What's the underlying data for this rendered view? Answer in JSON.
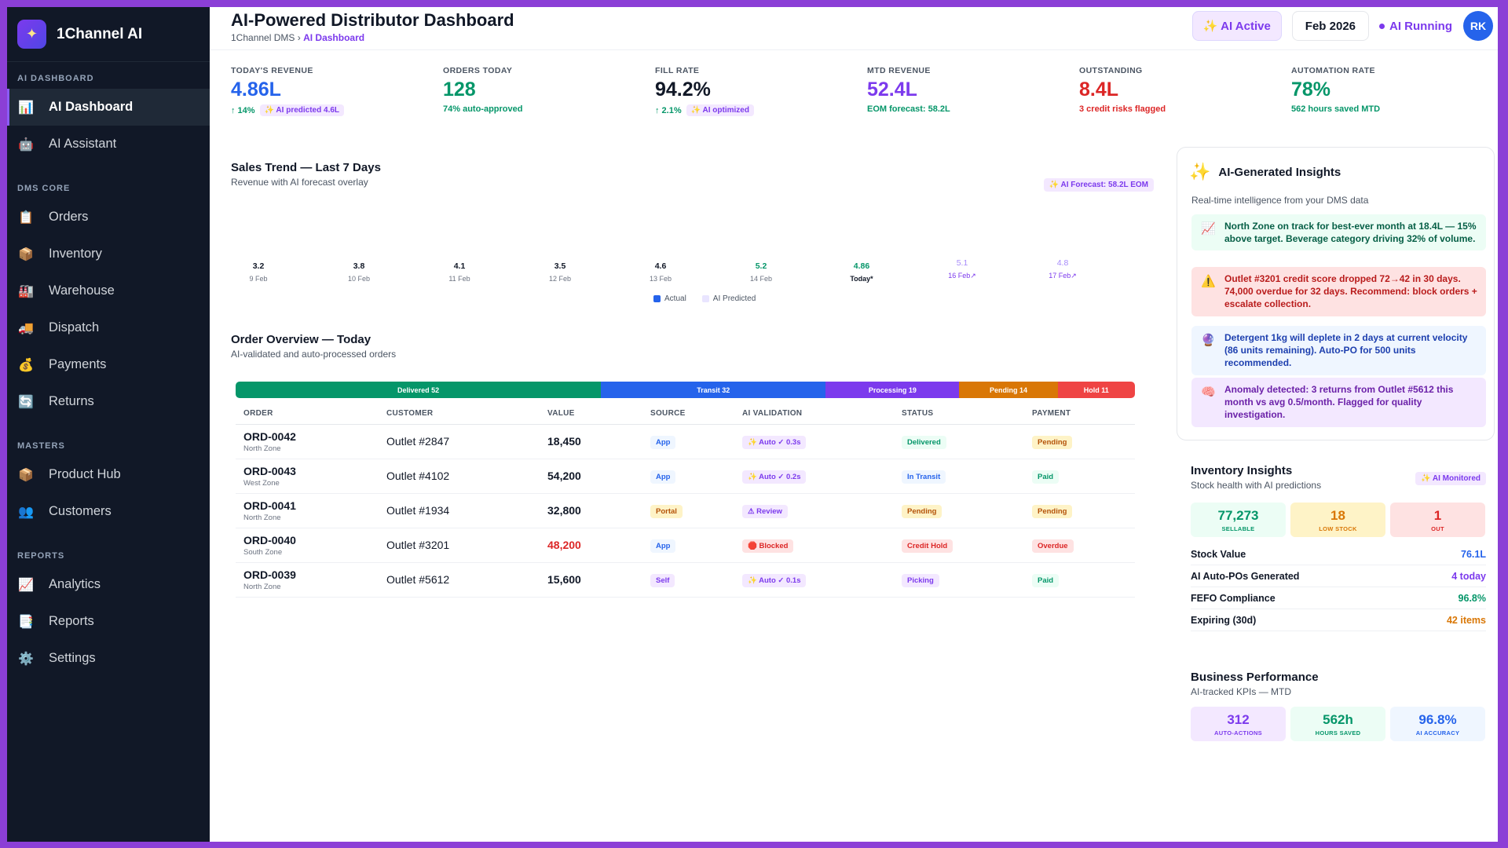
{
  "brand": {
    "name": "1Channel AI"
  },
  "sidebar": {
    "sections": [
      {
        "title": "AI DASHBOARD",
        "items": [
          {
            "label": "AI Dashboard",
            "icon": "bar-chart-icon",
            "glyph": "📊",
            "active": true
          },
          {
            "label": "AI Assistant",
            "icon": "robot-icon",
            "glyph": "🤖"
          }
        ]
      },
      {
        "title": "DMS CORE",
        "items": [
          {
            "label": "Orders",
            "icon": "clipboard-icon",
            "glyph": "📋"
          },
          {
            "label": "Inventory",
            "icon": "package-icon",
            "glyph": "📦"
          },
          {
            "label": "Warehouse",
            "icon": "factory-icon",
            "glyph": "🏭"
          },
          {
            "label": "Dispatch",
            "icon": "truck-icon",
            "glyph": "🚚"
          },
          {
            "label": "Payments",
            "icon": "money-bag-icon",
            "glyph": "💰"
          },
          {
            "label": "Returns",
            "icon": "return-icon",
            "glyph": "🔄"
          }
        ]
      },
      {
        "title": "MASTERS",
        "items": [
          {
            "label": "Product Hub",
            "icon": "box-icon",
            "glyph": "📦"
          },
          {
            "label": "Customers",
            "icon": "users-icon",
            "glyph": "👥"
          }
        ]
      },
      {
        "title": "REPORTS",
        "items": [
          {
            "label": "Analytics",
            "icon": "chart-up-icon",
            "glyph": "📈"
          },
          {
            "label": "Reports",
            "icon": "report-icon",
            "glyph": "📑"
          },
          {
            "label": "Settings",
            "icon": "gear-icon",
            "glyph": "⚙️"
          }
        ]
      }
    ]
  },
  "header": {
    "title": "AI-Powered Distributor Dashboard",
    "breadcrumb_root": "1Channel DMS",
    "breadcrumb_sep": "›",
    "breadcrumb_current": "AI Dashboard",
    "ai_active": "✨ AI Active",
    "date": "Feb 2026",
    "ai_running": "AI Running",
    "avatar": "RK"
  },
  "kpis": [
    {
      "label": "TODAY'S REVENUE",
      "value": "4.86L",
      "color": "#2563eb",
      "sub": "↑ 14%",
      "sub_color": "#059669",
      "tag": "✨ AI predicted 4.6L"
    },
    {
      "label": "ORDERS TODAY",
      "value": "128",
      "color": "#059669",
      "sub": "74% auto-approved",
      "sub_color": "#059669",
      "tag": ""
    },
    {
      "label": "FILL RATE",
      "value": "94.2%",
      "color": "#111827",
      "sub": "↑ 2.1%",
      "sub_color": "#059669",
      "tag": "✨ AI optimized"
    },
    {
      "label": "MTD REVENUE",
      "value": "52.4L",
      "color": "#7c3aed",
      "sub": "EOM forecast: 58.2L",
      "sub_color": "#059669",
      "tag": ""
    },
    {
      "label": "OUTSTANDING",
      "value": "8.4L",
      "color": "#dc2626",
      "sub": "3 credit risks flagged",
      "sub_color": "#dc2626",
      "tag": ""
    },
    {
      "label": "AUTOMATION RATE",
      "value": "78%",
      "color": "#059669",
      "sub": "562 hours saved MTD",
      "sub_color": "#059669",
      "tag": ""
    }
  ],
  "sales": {
    "title": "Sales Trend — Last 7 Days",
    "subtitle": "Revenue with AI forecast overlay",
    "forecast_tag": "✨ AI Forecast: 58.2L EOM",
    "legend_actual": "Actual",
    "legend_predicted": "AI Predicted"
  },
  "chart_data": {
    "type": "bar",
    "categories": [
      "9 Feb",
      "10 Feb",
      "11 Feb",
      "12 Feb",
      "13 Feb",
      "14 Feb",
      "Today*",
      "16 Feb↗",
      "17 Feb↗"
    ],
    "value_labels": [
      "3.2",
      "3.8",
      "4.1",
      "3.5",
      "4.6",
      "5.2",
      "4.86",
      "5.1",
      "4.8"
    ],
    "series": [
      {
        "name": "Actual",
        "values": [
          3.2,
          3.8,
          4.1,
          3.5,
          4.6,
          5.2,
          4.86,
          null,
          null
        ]
      },
      {
        "name": "AI Predicted",
        "values": [
          null,
          null,
          null,
          null,
          null,
          null,
          null,
          5.1,
          4.8
        ]
      }
    ],
    "label_colors": [
      "#111827",
      "#111827",
      "#111827",
      "#111827",
      "#111827",
      "#059669",
      "#059669",
      "#a78bfa",
      "#a78bfa"
    ]
  },
  "orders": {
    "title": "Order Overview — Today",
    "subtitle": "AI-validated and auto-processed orders",
    "segments": [
      {
        "label": "Delivered 52",
        "value": 52,
        "color": "#059669"
      },
      {
        "label": "Transit 32",
        "value": 32,
        "color": "#2563eb"
      },
      {
        "label": "Processing 19",
        "value": 19,
        "color": "#7c3aed"
      },
      {
        "label": "Pending 14",
        "value": 14,
        "color": "#d97706"
      },
      {
        "label": "Hold 11",
        "value": 11,
        "color": "#ef4444"
      }
    ],
    "columns": [
      "ORDER",
      "CUSTOMER",
      "VALUE",
      "SOURCE",
      "AI VALIDATION",
      "STATUS",
      "PAYMENT"
    ],
    "rows": [
      {
        "id": "ORD-0042",
        "zone": "North Zone",
        "customer": "Outlet #2847",
        "value": "18,450",
        "value_color": "#111827",
        "source": "App",
        "source_kind": "blue",
        "ai": "✨ Auto ✓ 0.3s",
        "ai_kind": "purple",
        "status": "Delivered",
        "status_kind": "green",
        "payment": "Pending",
        "payment_kind": "amber"
      },
      {
        "id": "ORD-0043",
        "zone": "West Zone",
        "customer": "Outlet #4102",
        "value": "54,200",
        "value_color": "#111827",
        "source": "App",
        "source_kind": "blue",
        "ai": "✨ Auto ✓ 0.2s",
        "ai_kind": "purple",
        "status": "In Transit",
        "status_kind": "blue",
        "payment": "Paid",
        "payment_kind": "green"
      },
      {
        "id": "ORD-0041",
        "zone": "North Zone",
        "customer": "Outlet #1934",
        "value": "32,800",
        "value_color": "#111827",
        "source": "Portal",
        "source_kind": "amber",
        "ai": "⚠ Review",
        "ai_kind": "purple",
        "status": "Pending",
        "status_kind": "amber",
        "payment": "Pending",
        "payment_kind": "amber"
      },
      {
        "id": "ORD-0040",
        "zone": "South Zone",
        "customer": "Outlet #3201",
        "value": "48,200",
        "value_color": "#dc2626",
        "source": "App",
        "source_kind": "blue",
        "ai": "🛑 Blocked",
        "ai_kind": "red",
        "status": "Credit Hold",
        "status_kind": "red",
        "payment": "Overdue",
        "payment_kind": "red"
      },
      {
        "id": "ORD-0039",
        "zone": "North Zone",
        "customer": "Outlet #5612",
        "value": "15,600",
        "value_color": "#111827",
        "source": "Self",
        "source_kind": "purple",
        "ai": "✨ Auto ✓ 0.1s",
        "ai_kind": "purple",
        "status": "Picking",
        "status_kind": "purple",
        "payment": "Paid",
        "payment_kind": "green"
      }
    ]
  },
  "insights": {
    "title": "AI-Generated Insights",
    "subtitle": "Real-time intelligence from your DMS data",
    "items": [
      {
        "icon": "chart-up-icon",
        "glyph": "📈",
        "text": "North Zone on track for best-ever month at 18.4L — 15% above target. Beverage category driving 32% of volume.",
        "bg": "#ecfdf5",
        "fg": "#065f46"
      },
      {
        "icon": "warning-icon",
        "glyph": "⚠️",
        "text": "Outlet #3201 credit score dropped 72→42 in 30 days. 74,000 overdue for 32 days. Recommend: block orders + escalate collection.",
        "bg": "#fee2e2",
        "fg": "#b91c1c"
      },
      {
        "icon": "crystal-ball-icon",
        "glyph": "🔮",
        "text": "Detergent 1kg will deplete in 2 days at current velocity (86 units remaining). Auto-PO for 500 units recommended.",
        "bg": "#eff6ff",
        "fg": "#1e40af"
      },
      {
        "icon": "brain-icon",
        "glyph": "🧠",
        "text": "Anomaly detected: 3 returns from Outlet #5612 this month vs avg 0.5/month. Flagged for quality investigation.",
        "bg": "#f3e8ff",
        "fg": "#6b21a8"
      }
    ]
  },
  "inventory": {
    "title": "Inventory Insights",
    "subtitle": "Stock health with AI predictions",
    "tag": "✨ AI Monitored",
    "tiles": [
      {
        "value": "77,273",
        "label": "SELLABLE",
        "bg": "#ecfdf5",
        "fg": "#059669"
      },
      {
        "value": "18",
        "label": "LOW STOCK",
        "bg": "#fef3c7",
        "fg": "#d97706"
      },
      {
        "value": "1",
        "label": "OUT",
        "bg": "#fee2e2",
        "fg": "#dc2626"
      }
    ],
    "rows": [
      {
        "label": "Stock Value",
        "value": "76.1L",
        "color": "#2563eb"
      },
      {
        "label": "AI Auto-POs Generated",
        "value": "4 today",
        "color": "#7c3aed"
      },
      {
        "label": "FEFO Compliance",
        "value": "96.8%",
        "color": "#059669"
      },
      {
        "label": "Expiring (30d)",
        "value": "42 items",
        "color": "#d97706"
      }
    ]
  },
  "business": {
    "title": "Business Performance",
    "subtitle": "AI-tracked KPIs — MTD",
    "tiles": [
      {
        "value": "312",
        "label": "AUTO-ACTIONS",
        "bg": "#f3e8ff",
        "fg": "#7c3aed"
      },
      {
        "value": "562h",
        "label": "HOURS SAVED",
        "bg": "#ecfdf5",
        "fg": "#059669"
      },
      {
        "value": "96.8%",
        "label": "AI ACCURACY",
        "bg": "#eff6ff",
        "fg": "#2563eb"
      }
    ]
  }
}
